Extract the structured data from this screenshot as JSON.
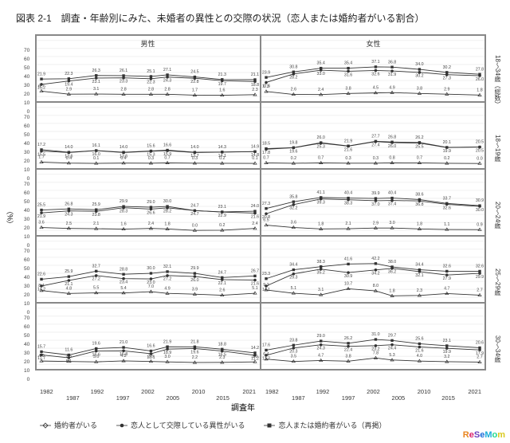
{
  "title": "図表 2-1　調査・年齢別にみた、未婚者の異性との交際の状況（恋人または婚約者がいる割合）",
  "col_headers": [
    "男性",
    "女性"
  ],
  "row_headers": [
    "18～34歳（総数）",
    "18～19歳",
    "20～24歳",
    "25～29歳",
    "30～34歳"
  ],
  "xlabel": "調査年",
  "ylabel": "（%）",
  "xticks_top": [
    "1982",
    "1992",
    "2002",
    "2010",
    "2021"
  ],
  "xticks_bot": [
    "1987",
    "1997",
    "2005",
    "2015"
  ],
  "legend": [
    "婚約者がいる",
    "恋人として交際している異性がいる",
    "恋人または婚約者がいる（再掲）"
  ],
  "watermark_parts": [
    {
      "t": "R",
      "c": "#e8851f"
    },
    {
      "t": "e",
      "c": "#d91f6b"
    },
    {
      "t": "S",
      "c": "#6a3fbf"
    },
    {
      "t": "e",
      "c": "#1a6bd9"
    },
    {
      "t": "M",
      "c": "#1aaed9"
    },
    {
      "t": "o",
      "c": "#1fd991"
    },
    {
      "t": "m",
      "c": "#d9c91f"
    }
  ],
  "chart": {
    "ylim": [
      0,
      70
    ],
    "yticks": [
      0,
      10,
      20,
      30,
      40,
      50,
      60,
      70
    ],
    "years": [
      1982,
      1987,
      1992,
      1997,
      2002,
      2005,
      2010,
      2015,
      2021
    ],
    "panels": [
      {
        "series": {
          "combined": [
            21.9,
            22.3,
            26.3,
            26.1,
            25.1,
            27.1,
            24.5,
            21.3,
            21.1
          ],
          "lover": [
            15.2,
            19.4,
            23.1,
            23.3,
            22.3,
            24.3,
            22.8,
            19.7,
            18.8
          ],
          "fiance": [
            6.7,
            2.9,
            3.1,
            2.8,
            2.8,
            2.8,
            1.7,
            1.6,
            2.3
          ]
        }
      },
      {
        "series": {
          "combined": [
            23.9,
            30.8,
            35.4,
            35.4,
            37.1,
            36.8,
            34.0,
            30.2,
            27.8
          ],
          "lover": [
            17.6,
            28.2,
            33.0,
            31.6,
            32.6,
            31.9,
            30.2,
            27.3,
            26.0
          ],
          "fiance": [
            6.3,
            2.6,
            2.4,
            3.8,
            4.5,
            4.9,
            3.8,
            2.9,
            1.8
          ]
        }
      },
      {
        "series": {
          "combined": [
            17.2,
            14.0,
            16.1,
            14.0,
            15.6,
            16.6,
            14.0,
            14.3,
            14.9
          ],
          "lover": [
            15.5,
            13.6,
            16.0,
            13.6,
            15.3,
            15.9,
            13.7,
            14.1,
            14.8
          ],
          "fiance": [
            1.7,
            0.4,
            0.1,
            0.4,
            0.3,
            0.7,
            0.3,
            0.2,
            0.1
          ]
        }
      },
      {
        "series": {
          "combined": [
            18.5,
            19.8,
            26.0,
            21.9,
            27.7,
            26.8,
            26.2,
            20.1,
            20.5
          ],
          "lover": [
            17.8,
            19.6,
            25.3,
            21.6,
            27.4,
            26.0,
            25.5,
            19.9,
            20.5
          ],
          "fiance": [
            0.7,
            0.2,
            0.7,
            0.3,
            0.3,
            0.8,
            0.7,
            0.2,
            0.0
          ]
        }
      },
      {
        "series": {
          "combined": [
            25.5,
            26.8,
            25.9,
            29.9,
            29.0,
            30.0,
            24.7,
            23.1,
            24.0
          ],
          "lover": [
            21.9,
            24.3,
            23.8,
            28.3,
            26.6,
            28.2,
            24.7,
            22.9,
            21.6
          ],
          "fiance": [
            3.6,
            2.5,
            2.1,
            1.6,
            2.4,
            1.8,
            0.0,
            0.2,
            2.4
          ]
        }
      },
      {
        "series": {
          "combined": [
            27.3,
            35.8,
            41.1,
            40.4,
            39.9,
            40.4,
            38.6,
            33.7,
            30.9
          ],
          "lover": [
            20.8,
            32.2,
            39.3,
            38.3,
            37.0,
            37.4,
            36.8,
            32.6,
            30.0
          ],
          "fiance": [
            6.5,
            3.6,
            1.8,
            2.1,
            2.9,
            3.0,
            1.8,
            1.1,
            0.9
          ]
        }
      },
      {
        "series": {
          "combined": [
            22.6,
            25.9,
            32.7,
            28.8,
            30.0,
            32.1,
            29.9,
            24.7,
            26.7
          ],
          "lover": [
            14.2,
            21.1,
            27.2,
            23.4,
            23.0,
            27.2,
            26.0,
            22.1,
            21.6
          ],
          "fiance": [
            8.4,
            4.8,
            5.5,
            5.4,
            7.0,
            4.9,
            3.9,
            2.6,
            5.1
          ]
        }
      },
      {
        "series": {
          "combined": [
            23.3,
            34.4,
            38.3,
            41.6,
            42.2,
            38.0,
            34.4,
            32.6,
            32.6
          ],
          "lover": [
            14.1,
            29.3,
            35.2,
            30.9,
            34.2,
            36.2,
            32.1,
            27.9,
            29.9
          ],
          "fiance": [
            9.2,
            5.1,
            3.1,
            10.7,
            8.0,
            1.8,
            2.3,
            4.7,
            2.7
          ]
        }
      },
      {
        "series": {
          "combined": [
            15.7,
            11.6,
            19.6,
            21.0,
            16.6,
            21.9,
            21.8,
            18.8,
            14.2
          ],
          "lover": [
            11.7,
            8.1,
            16.6,
            16.8,
            13.1,
            18.9,
            19.6,
            16.5,
            11.2
          ],
          "fiance": [
            4.0,
            3.5,
            3.0,
            4.2,
            3.5,
            3.0,
            2.2,
            2.3,
            3.0
          ]
        }
      },
      {
        "series": {
          "combined": [
            17.6,
            23.8,
            29.0,
            26.2,
            31.0,
            29.7,
            25.6,
            23.1,
            20.6
          ],
          "lover": [
            11.2,
            20.3,
            24.3,
            22.4,
            23.2,
            24.4,
            21.6,
            19.9,
            17.9
          ],
          "fiance": [
            6.4,
            3.5,
            4.7,
            3.8,
            7.8,
            5.3,
            4.0,
            3.2,
            2.7
          ]
        }
      }
    ]
  },
  "style": {
    "colors": {
      "line": "#333333",
      "labeltext": "#444444"
    },
    "fontsize_datalabel": 5.3
  }
}
